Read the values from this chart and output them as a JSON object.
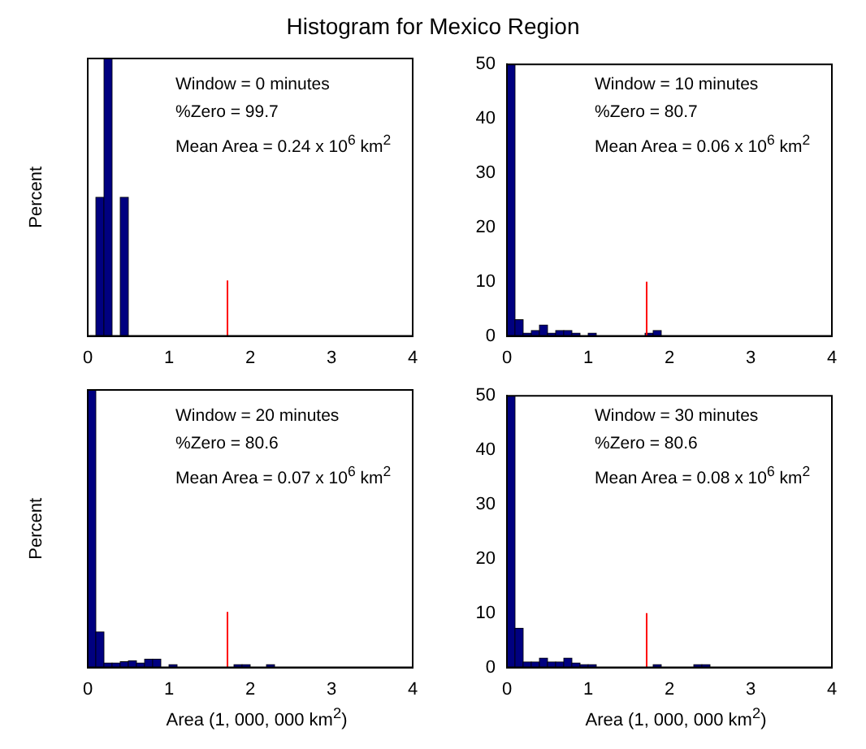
{
  "chart_data": [
    {
      "type": "histogram",
      "title": "Histogram for Mexico Region",
      "ylabel": "Percent",
      "annotations": [
        "Window = 0 minutes",
        "%Zero = 99.7",
        "Mean Area = 0.24 x 10$^{6}$ km$^{2}$"
      ],
      "bins": [
        0,
        0.1,
        0.2,
        0.3,
        0.4,
        0.5,
        0.6,
        0.7,
        0.8,
        0.9,
        1,
        1.1,
        1.2,
        1.3,
        1.4,
        1.5,
        1.6,
        1.7,
        1.8,
        1.9,
        2,
        2.1,
        2.2,
        2.3,
        2.4,
        2.5,
        2.6,
        2.7,
        2.8,
        2.9,
        3,
        3.1,
        3.2,
        3.3,
        3.4,
        3.5,
        3.6,
        3.7,
        3.8,
        3.9,
        4
      ],
      "values": [
        0,
        25,
        50,
        0,
        25,
        0,
        0,
        0,
        0,
        0,
        0,
        0,
        0,
        0,
        0,
        0,
        0,
        0,
        0,
        0,
        0,
        0,
        0,
        0,
        0,
        0,
        0,
        0,
        0,
        0,
        0,
        0,
        0,
        0,
        0,
        0,
        0,
        0,
        0,
        0
      ],
      "color": "#000080",
      "xlim": [
        0,
        4
      ],
      "xticks": [
        0,
        1,
        2,
        3,
        4
      ],
      "ylim": [
        0,
        50
      ],
      "yticks": [
        0,
        10,
        20,
        30,
        40,
        50
      ],
      "tick_labels": "x",
      "ref_lines": [
        {
          "axis": "x",
          "value": 1.72,
          "color": "#ff0000"
        }
      ]
    },
    {
      "type": "histogram",
      "annotations": [
        "Window = 10 minutes",
        "%Zero = 80.7",
        "Mean Area = 0.06 x 10$^{6}$ km$^{2}$"
      ],
      "bins": [
        0,
        0.1,
        0.2,
        0.3,
        0.4,
        0.5,
        0.6,
        0.7,
        0.8,
        0.9,
        1,
        1.1,
        1.2,
        1.3,
        1.4,
        1.5,
        1.6,
        1.7,
        1.8,
        1.9,
        2,
        2.1,
        2.2,
        2.3,
        2.4,
        2.5,
        2.6,
        2.7,
        2.8,
        2.9,
        3,
        3.1,
        3.2,
        3.3,
        3.4,
        3.5,
        3.6,
        3.7,
        3.8,
        3.9,
        4
      ],
      "values": [
        50,
        3,
        0.5,
        1,
        2,
        0.5,
        1,
        1,
        0.5,
        0,
        0.5,
        0,
        0,
        0,
        0,
        0,
        0,
        0.5,
        1,
        0,
        0,
        0,
        0,
        0,
        0,
        0,
        0,
        0,
        0,
        0,
        0,
        0,
        0,
        0,
        0,
        0,
        0,
        0,
        0,
        0
      ],
      "color": "#000080",
      "xlim": [
        0,
        4
      ],
      "xticks": [
        0,
        1,
        2,
        3,
        4
      ],
      "ylim": [
        0,
        50
      ],
      "yticks": [
        0,
        10,
        20,
        30,
        40,
        50
      ],
      "ref_lines": [
        {
          "axis": "x",
          "value": 1.72,
          "color": "#ff0000"
        }
      ]
    },
    {
      "type": "histogram",
      "ylabel": "Percent",
      "xlabel": "Area (1, 000, 000 km$^{2}$)",
      "annotations": [
        "Window = 20 minutes",
        "%Zero = 80.6",
        "Mean Area = 0.07 x 10$^{6}$ km$^{2}$"
      ],
      "bins": [
        0,
        0.1,
        0.2,
        0.3,
        0.4,
        0.5,
        0.6,
        0.7,
        0.8,
        0.9,
        1,
        1.1,
        1.2,
        1.3,
        1.4,
        1.5,
        1.6,
        1.7,
        1.8,
        1.9,
        2,
        2.1,
        2.2,
        2.3,
        2.4,
        2.5,
        2.6,
        2.7,
        2.8,
        2.9,
        3,
        3.1,
        3.2,
        3.3,
        3.4,
        3.5,
        3.6,
        3.7,
        3.8,
        3.9,
        4
      ],
      "values": [
        50,
        6.4,
        0.8,
        0.8,
        1,
        1.2,
        0.8,
        1.5,
        1.5,
        0,
        0.5,
        0,
        0,
        0,
        0,
        0,
        0,
        0,
        0.5,
        0.5,
        0,
        0,
        0.5,
        0,
        0,
        0,
        0,
        0,
        0,
        0,
        0,
        0,
        0,
        0,
        0,
        0,
        0,
        0,
        0,
        0
      ],
      "color": "#000080",
      "xlim": [
        0,
        4
      ],
      "xticks": [
        0,
        1,
        2,
        3,
        4
      ],
      "ylim": [
        0,
        50
      ],
      "yticks": [
        0,
        10,
        20,
        30,
        40,
        50
      ],
      "tick_labels": "x",
      "ref_lines": [
        {
          "axis": "x",
          "value": 1.72,
          "color": "#ff0000"
        }
      ]
    },
    {
      "type": "histogram",
      "xlabel": "Area (1, 000, 000 km$^{2}$)",
      "annotations": [
        "Window = 30 minutes",
        "%Zero = 80.6",
        "Mean Area = 0.08 x 10$^{6}$ km$^{2}$"
      ],
      "bins": [
        0,
        0.1,
        0.2,
        0.3,
        0.4,
        0.5,
        0.6,
        0.7,
        0.8,
        0.9,
        1,
        1.1,
        1.2,
        1.3,
        1.4,
        1.5,
        1.6,
        1.7,
        1.8,
        1.9,
        2,
        2.1,
        2.2,
        2.3,
        2.4,
        2.5,
        2.6,
        2.7,
        2.8,
        2.9,
        3,
        3.1,
        3.2,
        3.3,
        3.4,
        3.5,
        3.6,
        3.7,
        3.8,
        3.9,
        4
      ],
      "values": [
        50,
        7.2,
        1,
        1,
        1.7,
        1,
        1,
        1.7,
        0.8,
        0.5,
        0.5,
        0,
        0,
        0,
        0,
        0,
        0,
        0,
        0.5,
        0,
        0,
        0,
        0,
        0.5,
        0.5,
        0,
        0,
        0,
        0,
        0,
        0,
        0,
        0,
        0,
        0,
        0,
        0,
        0,
        0,
        0
      ],
      "color": "#000080",
      "xlim": [
        0,
        4
      ],
      "xticks": [
        0,
        1,
        2,
        3,
        4
      ],
      "ylim": [
        0,
        50
      ],
      "yticks": [
        0,
        10,
        20,
        30,
        40,
        50
      ],
      "ref_lines": [
        {
          "axis": "x",
          "value": 1.72,
          "color": "#ff0000"
        }
      ]
    }
  ]
}
